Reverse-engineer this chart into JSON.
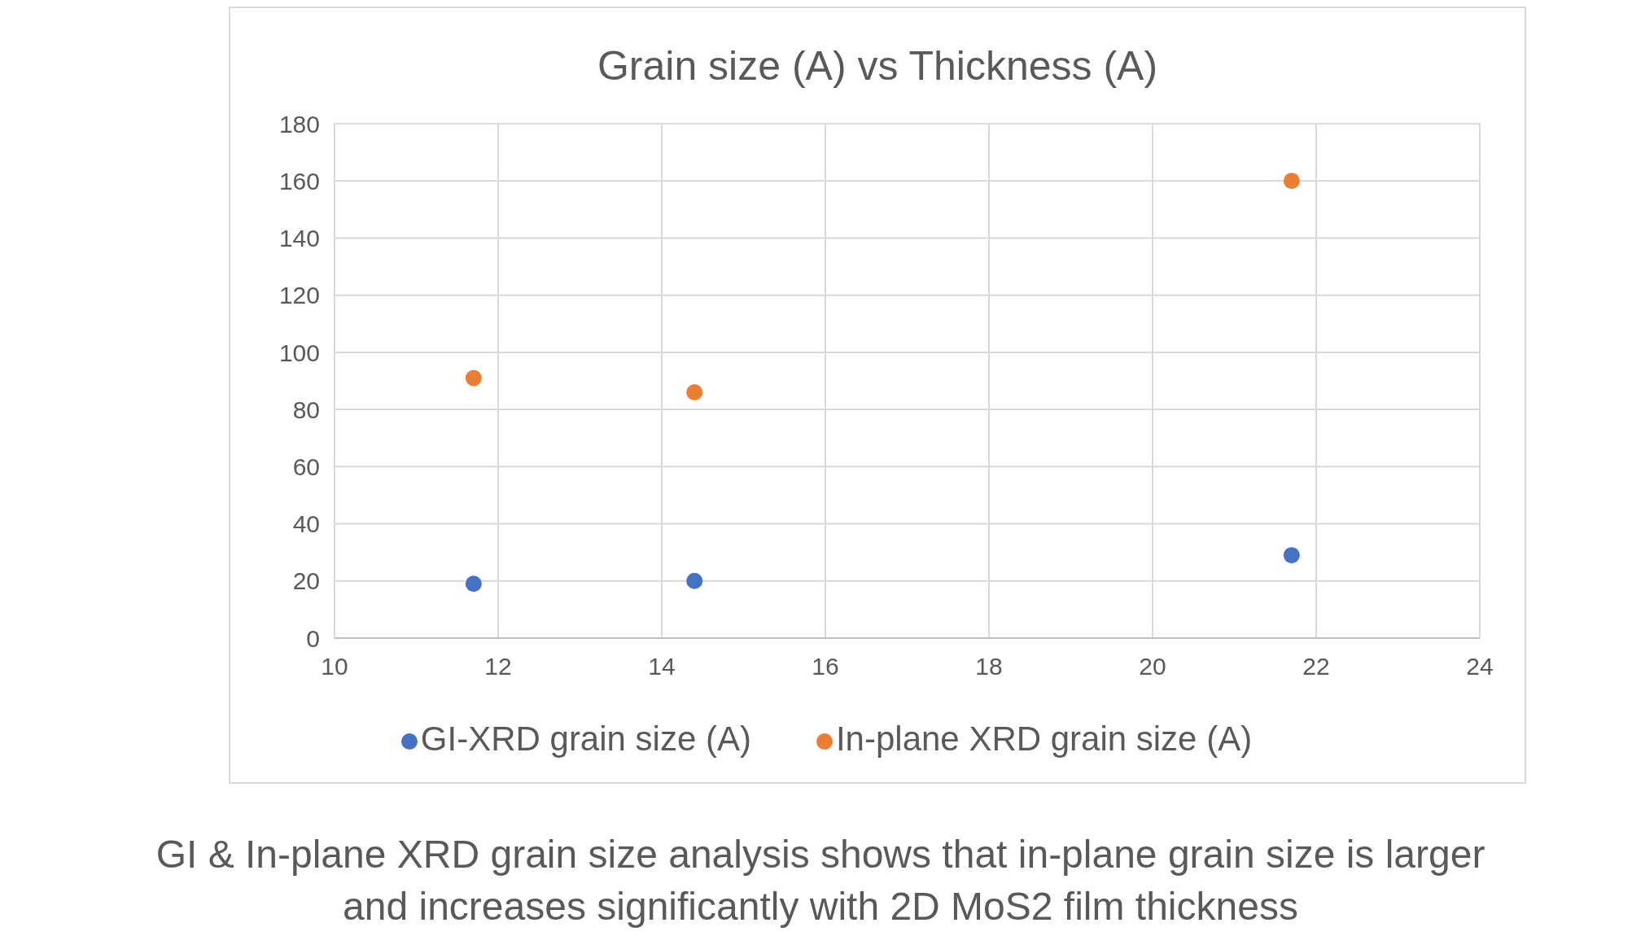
{
  "chart_data": {
    "type": "scatter",
    "title": "Grain size (A) vs Thickness (A)",
    "series": [
      {
        "name": "GI-XRD grain size (A)",
        "color": "#4472c4",
        "x": [
          11.7,
          14.4,
          21.7
        ],
        "values": [
          19,
          20,
          29
        ]
      },
      {
        "name": "In-plane XRD grain size (A)",
        "color": "#ed7d31",
        "x": [
          11.7,
          14.4,
          21.7
        ],
        "values": [
          91,
          86,
          160
        ]
      }
    ],
    "xlim": [
      10,
      24
    ],
    "xticks": [
      10,
      12,
      14,
      16,
      18,
      20,
      22,
      24
    ],
    "ylim": [
      0,
      180
    ],
    "yticks": [
      0,
      20,
      40,
      60,
      80,
      100,
      120,
      140,
      160,
      180
    ],
    "grid": true,
    "legend": "bottom",
    "marker": "circle",
    "annotations": [
      "GI & In-plane XRD grain size analysis shows that in-plane grain size is larger and increases significantly with 2D MoS2 film thickness"
    ]
  }
}
